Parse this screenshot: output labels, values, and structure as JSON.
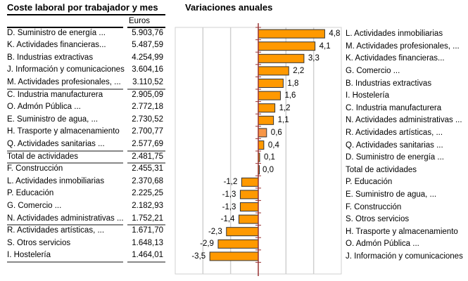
{
  "table": {
    "title": "Coste laboral por trabajador y mes",
    "unit": "Euros",
    "rows": [
      [
        "D. Suministro de energía ...",
        "5.903,76"
      ],
      [
        "K. Actividades financieras...",
        "5.487,59"
      ],
      [
        "B. Industrias extractivas",
        "4.254,99"
      ],
      [
        "J. Información y comunicaciones",
        "3.604,16"
      ],
      [
        "M. Actividades profesionales, ...",
        "3.110,52"
      ],
      [
        "C. Industria manufacturera",
        "2.905,09"
      ],
      [
        "O. Admón Pública ...",
        "2.772,18"
      ],
      [
        "E. Suministro de agua, ...",
        "2.730,52"
      ],
      [
        "H. Trasporte y almacenamiento",
        "2.700,77"
      ],
      [
        "Q. Actividades sanitarias ...",
        "2.577,69"
      ],
      [
        "Total de actividades",
        "2.481,75"
      ],
      [
        "F. Construcción",
        "2.455,31"
      ],
      [
        "L. Actividades inmobiliarias",
        "2.370,68"
      ],
      [
        "P. Educación",
        "2.225,25"
      ],
      [
        "G. Comercio ...",
        "2.182,93"
      ],
      [
        "N. Actividades administrativas ...",
        "1.752,21"
      ],
      [
        "R. Actividades artísticas, ...",
        "1.671,70"
      ],
      [
        "S. Otros servicios",
        "1.648,13"
      ],
      [
        "I. Hostelería",
        "1.464,01"
      ]
    ]
  },
  "chart_data": {
    "type": "bar",
    "orientation": "horizontal",
    "title": "Variaciones anuales",
    "xlim": [
      -6,
      6
    ],
    "grid": true,
    "categories": [
      "L. Actividades inmobiliarias",
      "M. Actividades profesionales, ...",
      "K. Actividades financieras...",
      "G. Comercio ...",
      "B. Industrias extractivas",
      "I. Hostelería",
      "C. Industria manufacturera",
      "N. Actividades administrativas ...",
      "R. Actividades artísticas, ...",
      "Q. Actividades sanitarias ...",
      "D. Suministro de energía ...",
      "Total de actividades",
      "P. Educación",
      "E. Suministro de agua, ...",
      "F. Construcción",
      "S. Otros servicios",
      "H. Trasporte y almacenamiento",
      "O. Admón Pública ...",
      "J. Información y comunicaciones"
    ],
    "values": [
      4.8,
      4.1,
      3.3,
      2.2,
      1.8,
      1.6,
      1.2,
      1.1,
      0.6,
      0.4,
      0.1,
      0.0,
      -1.2,
      -1.3,
      -1.3,
      -1.4,
      -2.3,
      -2.9,
      -3.5
    ],
    "labels": [
      "4,8",
      "4,1",
      "3,3",
      "2,2",
      "1,8",
      "1,6",
      "1,2",
      "1,1",
      "0,6",
      "0,4",
      "0,1",
      "0,0",
      "-1,2",
      "-1,3",
      "-1,3",
      "-1,4",
      "-2,3",
      "-2,9",
      "-3,5"
    ],
    "colors": {
      "bar": "#ff9900",
      "highlight": "#f79646",
      "axis": "#993333"
    },
    "highlight_index": 8
  }
}
